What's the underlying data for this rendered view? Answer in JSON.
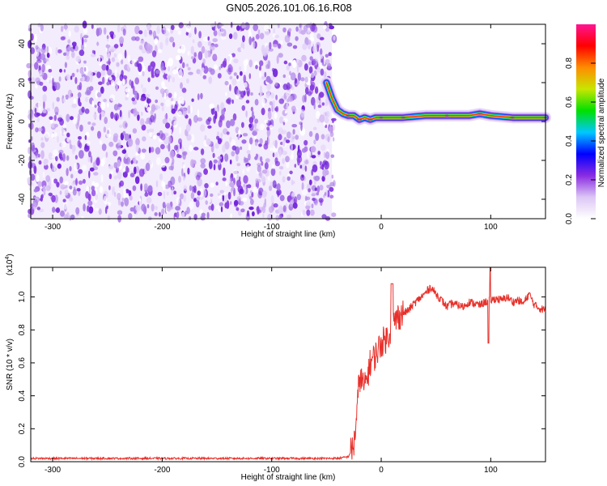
{
  "title": "GN05.2026.101.06.16.R08",
  "chart_data": [
    {
      "type": "heatmap",
      "panel": "spectrogram",
      "xlabel": "Height of straight line (km)",
      "ylabel": "Frequency (Hz)",
      "xlim": [
        -320,
        150
      ],
      "ylim": [
        -50,
        50
      ],
      "xticks": [
        "-300",
        "-200",
        "-100",
        "0",
        "100"
      ],
      "yticks": [
        "-40",
        "-20",
        "0",
        "20",
        "40"
      ],
      "noise_region_x": [
        -320,
        -45
      ],
      "ridge": {
        "description_x": [
          -50,
          -45,
          -40,
          -35,
          -30,
          -25,
          -20,
          -15,
          -10,
          -5,
          0,
          10,
          20,
          40,
          60,
          80,
          90,
          100,
          120,
          140,
          150
        ],
        "freq_hz": [
          20,
          12,
          6,
          4,
          3,
          3,
          1,
          2,
          1,
          2,
          2,
          2,
          2,
          3,
          3,
          3,
          4,
          3,
          2,
          2,
          2
        ]
      },
      "colorbar": {
        "label": "Normalized spectral amplitude",
        "range": [
          0,
          1
        ],
        "ticks": [
          "0.0",
          "0.2",
          "0.4",
          "0.6",
          "0.8"
        ],
        "colors": [
          "#ffffff",
          "#dcc6f5",
          "#8a2be2",
          "#0000ff",
          "#00c8ff",
          "#00e000",
          "#c8e600",
          "#ff8c00",
          "#ff0000",
          "#ff1493"
        ]
      }
    },
    {
      "type": "line",
      "panel": "snr",
      "xlabel": "Height of straight line (km)",
      "ylabel": "SNR (10 * v/v)",
      "yscale_label": "(x10",
      "yscale_exp": "4",
      "yscale_close": ")",
      "xlim": [
        -320,
        150
      ],
      "ylim": [
        0,
        1.18
      ],
      "xticks": [
        "-300",
        "-200",
        "-100",
        "0",
        "100"
      ],
      "yticks": [
        "0.0",
        "0.2",
        "0.4",
        "0.6",
        "0.8",
        "1.0"
      ],
      "color": "#e8302a",
      "series": [
        {
          "x": [
            -320,
            -200,
            -100,
            -40,
            -30,
            -25,
            -22,
            -20,
            -15,
            -10,
            -5,
            0,
            5,
            10,
            15,
            20,
            25,
            30,
            40,
            45,
            50,
            55,
            60,
            65,
            70,
            75,
            80,
            85,
            90,
            95,
            100,
            105,
            110,
            115,
            120,
            125,
            130,
            135,
            140,
            145,
            150
          ],
          "values": [
            0.02,
            0.02,
            0.02,
            0.02,
            0.03,
            0.1,
            0.3,
            0.52,
            0.45,
            0.6,
            0.65,
            0.72,
            0.75,
            0.82,
            0.88,
            0.9,
            0.92,
            0.96,
            1.02,
            1.06,
            1.02,
            0.98,
            0.94,
            0.96,
            0.95,
            0.94,
            0.97,
            0.96,
            0.95,
            0.97,
            0.98,
            0.99,
            0.98,
            1.0,
            0.97,
            0.98,
            0.96,
            1.02,
            0.95,
            0.93,
            0.92
          ]
        }
      ]
    }
  ]
}
